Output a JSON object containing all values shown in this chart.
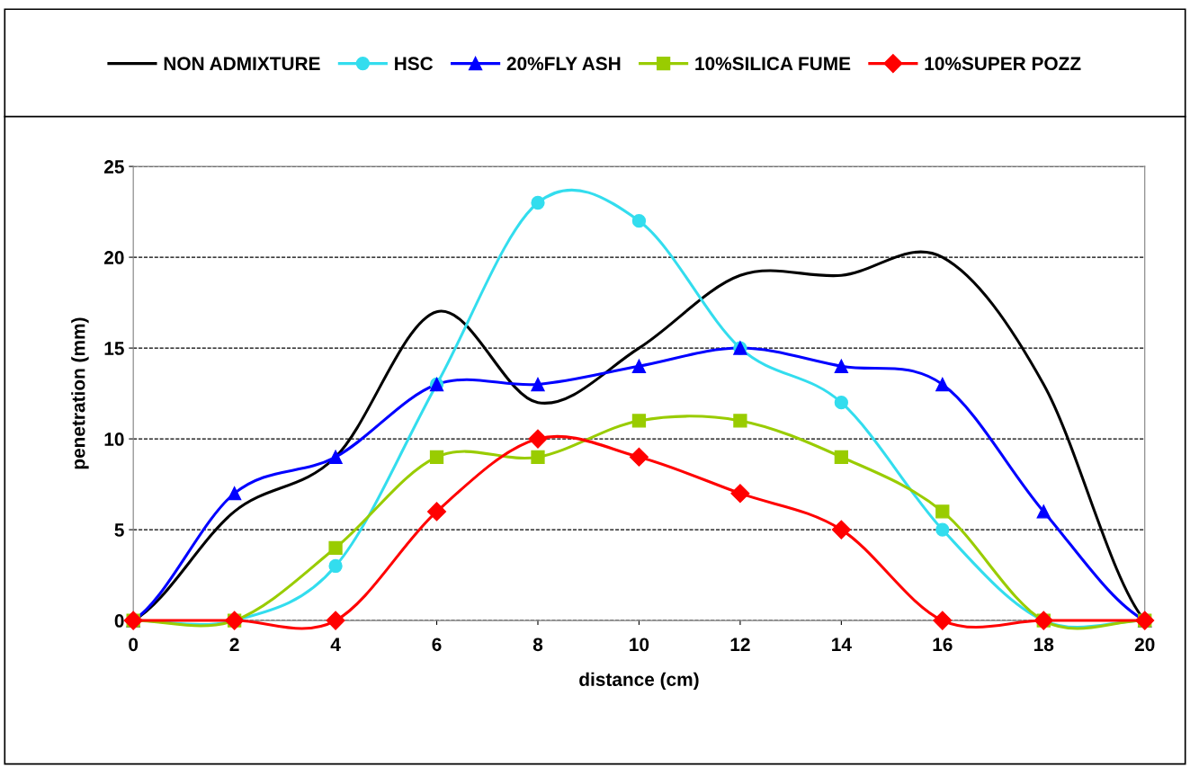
{
  "chart_data": {
    "type": "line",
    "xlabel": "distance (cm)",
    "ylabel": "penetration (mm)",
    "x": [
      0,
      2,
      4,
      6,
      8,
      10,
      12,
      14,
      16,
      18,
      20
    ],
    "xlim": [
      0,
      20
    ],
    "xticks": [
      0,
      2,
      4,
      6,
      8,
      10,
      12,
      14,
      16,
      18,
      20
    ],
    "ylim": [
      0,
      25
    ],
    "yticks": [
      0,
      5,
      10,
      15,
      20,
      25
    ],
    "grid": "y",
    "legend": "top",
    "line_style": "solid",
    "series": [
      {
        "name": "NON ADMIXTURE",
        "color": "#000000",
        "marker": "none",
        "values": [
          0,
          6,
          9,
          17,
          12,
          15,
          19,
          19,
          20,
          13,
          0
        ]
      },
      {
        "name": "HSC",
        "color": "#33ddee",
        "marker": "circle",
        "values": [
          0,
          0,
          3,
          13,
          23,
          22,
          15,
          12,
          5,
          0,
          0
        ]
      },
      {
        "name": "20%FLY ASH",
        "color": "#0000ff",
        "marker": "triangle",
        "values": [
          0,
          7,
          9,
          13,
          13,
          14,
          15,
          14,
          13,
          6,
          0
        ]
      },
      {
        "name": "10%SILICA FUME",
        "color": "#99cc00",
        "marker": "square",
        "values": [
          0,
          0,
          4,
          9,
          9,
          11,
          11,
          9,
          6,
          0,
          0
        ]
      },
      {
        "name": "10%SUPER POZZ",
        "color": "#ff0000",
        "marker": "diamond",
        "values": [
          0,
          0,
          0,
          6,
          10,
          9,
          7,
          5,
          0,
          0,
          0
        ]
      }
    ]
  }
}
